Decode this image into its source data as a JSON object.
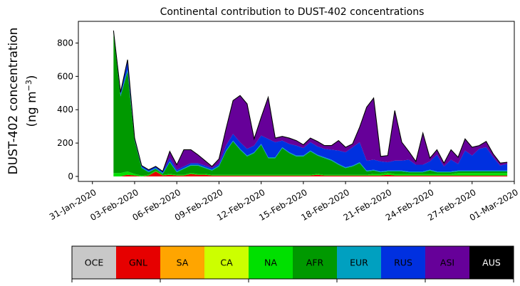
{
  "chart_data": {
    "type": "area",
    "stacked": true,
    "title": "Continental contribution to DUST-402 concentrations",
    "ylabel_line1": "DUST-402 concentration",
    "ylabel_line2_prefix": "(ng m",
    "ylabel_line2_sup": "−3",
    "ylabel_line2_suffix": ")",
    "xlabel": "",
    "xlim": [
      "2020-01-30",
      "2020-03-01"
    ],
    "ylim": [
      -30,
      930
    ],
    "yticks": [
      0,
      200,
      400,
      600,
      800
    ],
    "xticks": [
      {
        "date": "2020-01-31",
        "label": "31-Jan-2020"
      },
      {
        "date": "2020-02-03",
        "label": "03-Feb-2020"
      },
      {
        "date": "2020-02-06",
        "label": "06-Feb-2020"
      },
      {
        "date": "2020-02-09",
        "label": "09-Feb-2020"
      },
      {
        "date": "2020-02-12",
        "label": "12-Feb-2020"
      },
      {
        "date": "2020-02-15",
        "label": "15-Feb-2020"
      },
      {
        "date": "2020-02-18",
        "label": "18-Feb-2020"
      },
      {
        "date": "2020-02-21",
        "label": "21-Feb-2020"
      },
      {
        "date": "2020-02-24",
        "label": "24-Feb-2020"
      },
      {
        "date": "2020-02-27",
        "label": "27-Feb-2020"
      },
      {
        "date": "2020-03-01",
        "label": "01-Mar-2020"
      }
    ],
    "grid": false,
    "legend_placement": "bottom (colorbar)",
    "x": [
      "2020-02-01T12:00",
      "2020-02-02T00:00",
      "2020-02-02T12:00",
      "2020-02-03T00:00",
      "2020-02-03T12:00",
      "2020-02-04T00:00",
      "2020-02-04T12:00",
      "2020-02-05T00:00",
      "2020-02-05T12:00",
      "2020-02-06T00:00",
      "2020-02-06T12:00",
      "2020-02-07T00:00",
      "2020-02-07T12:00",
      "2020-02-08T00:00",
      "2020-02-08T12:00",
      "2020-02-09T00:00",
      "2020-02-09T12:00",
      "2020-02-10T00:00",
      "2020-02-10T12:00",
      "2020-02-11T00:00",
      "2020-02-11T12:00",
      "2020-02-12T00:00",
      "2020-02-12T12:00",
      "2020-02-13T00:00",
      "2020-02-13T12:00",
      "2020-02-14T00:00",
      "2020-02-14T12:00",
      "2020-02-15T00:00",
      "2020-02-15T12:00",
      "2020-02-16T00:00",
      "2020-02-16T12:00",
      "2020-02-17T00:00",
      "2020-02-17T12:00",
      "2020-02-18T00:00",
      "2020-02-18T12:00",
      "2020-02-19T00:00",
      "2020-02-19T12:00",
      "2020-02-20T00:00",
      "2020-02-20T12:00",
      "2020-02-21T00:00",
      "2020-02-21T12:00",
      "2020-02-22T00:00",
      "2020-02-22T12:00",
      "2020-02-23T00:00",
      "2020-02-23T12:00",
      "2020-02-24T00:00",
      "2020-02-24T12:00",
      "2020-02-25T00:00",
      "2020-02-25T12:00",
      "2020-02-26T00:00",
      "2020-02-26T12:00",
      "2020-02-27T00:00",
      "2020-02-27T12:00",
      "2020-02-28T00:00",
      "2020-02-28T12:00",
      "2020-02-29T00:00",
      "2020-02-29T12:00"
    ],
    "series": [
      {
        "name": "OCE",
        "color": "#c8c8c8",
        "values": [
          0,
          0,
          0,
          0,
          0,
          0,
          0,
          0,
          0,
          0,
          0,
          0,
          0,
          0,
          0,
          0,
          0,
          0,
          0,
          0,
          0,
          0,
          0,
          0,
          0,
          0,
          0,
          0,
          0,
          0,
          0,
          0,
          0,
          0,
          0,
          0,
          0,
          0,
          0,
          0,
          0,
          0,
          0,
          0,
          0,
          0,
          0,
          0,
          0,
          0,
          0,
          0,
          0,
          0,
          0,
          0,
          0
        ]
      },
      {
        "name": "GNL",
        "color": "#e60000",
        "values": [
          0,
          0,
          10,
          5,
          0,
          5,
          30,
          5,
          10,
          5,
          5,
          15,
          10,
          10,
          5,
          5,
          5,
          5,
          5,
          5,
          5,
          5,
          5,
          5,
          5,
          5,
          5,
          5,
          5,
          10,
          5,
          5,
          5,
          5,
          5,
          5,
          5,
          5,
          5,
          10,
          5,
          5,
          5,
          5,
          5,
          5,
          5,
          5,
          5,
          5,
          5,
          5,
          5,
          5,
          5,
          5,
          5
        ]
      },
      {
        "name": "SA",
        "color": "#ffa500",
        "values": [
          0,
          0,
          0,
          0,
          0,
          0,
          0,
          0,
          0,
          0,
          0,
          0,
          0,
          0,
          0,
          0,
          0,
          0,
          0,
          0,
          0,
          0,
          0,
          0,
          0,
          0,
          0,
          0,
          0,
          0,
          0,
          0,
          0,
          0,
          0,
          0,
          0,
          0,
          0,
          0,
          0,
          0,
          0,
          0,
          0,
          0,
          0,
          0,
          0,
          0,
          0,
          0,
          0,
          0,
          0,
          0,
          0
        ]
      },
      {
        "name": "CA",
        "color": "#ccff00",
        "values": [
          0,
          0,
          0,
          0,
          0,
          0,
          0,
          0,
          0,
          0,
          0,
          0,
          0,
          0,
          0,
          0,
          0,
          0,
          0,
          0,
          0,
          0,
          0,
          0,
          0,
          0,
          0,
          0,
          0,
          0,
          0,
          0,
          0,
          0,
          0,
          0,
          0,
          0,
          0,
          0,
          0,
          0,
          0,
          0,
          0,
          0,
          0,
          0,
          0,
          0,
          0,
          0,
          0,
          0,
          0,
          0,
          0
        ]
      },
      {
        "name": "NA",
        "color": "#00e000",
        "values": [
          20,
          20,
          20,
          10,
          5,
          5,
          5,
          5,
          5,
          5,
          5,
          5,
          5,
          5,
          5,
          5,
          5,
          5,
          5,
          5,
          5,
          5,
          5,
          5,
          5,
          5,
          5,
          5,
          5,
          5,
          5,
          5,
          5,
          5,
          5,
          5,
          5,
          10,
          10,
          10,
          10,
          10,
          10,
          10,
          10,
          10,
          10,
          10,
          10,
          15,
          15,
          15,
          15,
          15,
          15,
          15,
          15
        ]
      },
      {
        "name": "AFR",
        "color": "#009900",
        "values": [
          840,
          460,
          600,
          200,
          45,
          15,
          10,
          5,
          70,
          15,
          35,
          45,
          50,
          35,
          25,
          50,
          140,
          200,
          150,
          110,
          130,
          180,
          100,
          100,
          160,
          130,
          110,
          110,
          140,
          110,
          100,
          85,
          60,
          40,
          50,
          70,
          20,
          20,
          10,
          10,
          15,
          15,
          10,
          10,
          10,
          20,
          10,
          10,
          10,
          10,
          10,
          10,
          10,
          10,
          10,
          10,
          10
        ]
      },
      {
        "name": "EUR",
        "color": "#00a0c0",
        "values": [
          10,
          10,
          10,
          5,
          5,
          5,
          5,
          5,
          5,
          5,
          5,
          5,
          5,
          5,
          5,
          5,
          5,
          5,
          5,
          5,
          5,
          5,
          5,
          5,
          5,
          5,
          5,
          5,
          5,
          5,
          5,
          5,
          5,
          5,
          5,
          5,
          5,
          5,
          5,
          5,
          5,
          5,
          5,
          5,
          5,
          5,
          5,
          5,
          5,
          5,
          5,
          5,
          5,
          5,
          5,
          5,
          5
        ]
      },
      {
        "name": "RUS",
        "color": "#0030e0",
        "values": [
          5,
          15,
          60,
          10,
          10,
          10,
          10,
          10,
          20,
          10,
          10,
          10,
          10,
          10,
          10,
          10,
          30,
          40,
          40,
          40,
          40,
          50,
          110,
          90,
          40,
          50,
          60,
          45,
          50,
          50,
          50,
          60,
          80,
          90,
          110,
          120,
          60,
          60,
          60,
          50,
          60,
          60,
          70,
          40,
          40,
          50,
          100,
          30,
          70,
          40,
          120,
          90,
          130,
          140,
          80,
          30,
          40
        ]
      },
      {
        "name": "ASI",
        "color": "#660099",
        "values": [
          0,
          0,
          0,
          0,
          0,
          0,
          0,
          0,
          40,
          30,
          100,
          80,
          50,
          30,
          10,
          30,
          100,
          200,
          280,
          270,
          40,
          110,
          250,
          25,
          25,
          35,
          30,
          20,
          25,
          30,
          20,
          25,
          60,
          30,
          20,
          90,
          320,
          370,
          30,
          40,
          300,
          110,
          50,
          20,
          190,
          20,
          30,
          20,
          60,
          40,
          70,
          50,
          20,
          35,
          20,
          15,
          10
        ]
      },
      {
        "name": "AUS",
        "color": "#000000",
        "values": [
          0,
          0,
          0,
          0,
          0,
          0,
          0,
          0,
          0,
          0,
          0,
          0,
          0,
          0,
          0,
          0,
          0,
          0,
          0,
          0,
          0,
          0,
          0,
          0,
          0,
          0,
          0,
          0,
          0,
          0,
          0,
          0,
          0,
          0,
          0,
          0,
          0,
          0,
          0,
          0,
          0,
          0,
          0,
          0,
          0,
          0,
          0,
          0,
          0,
          0,
          0,
          0,
          0,
          0,
          0,
          0,
          0
        ]
      }
    ]
  }
}
